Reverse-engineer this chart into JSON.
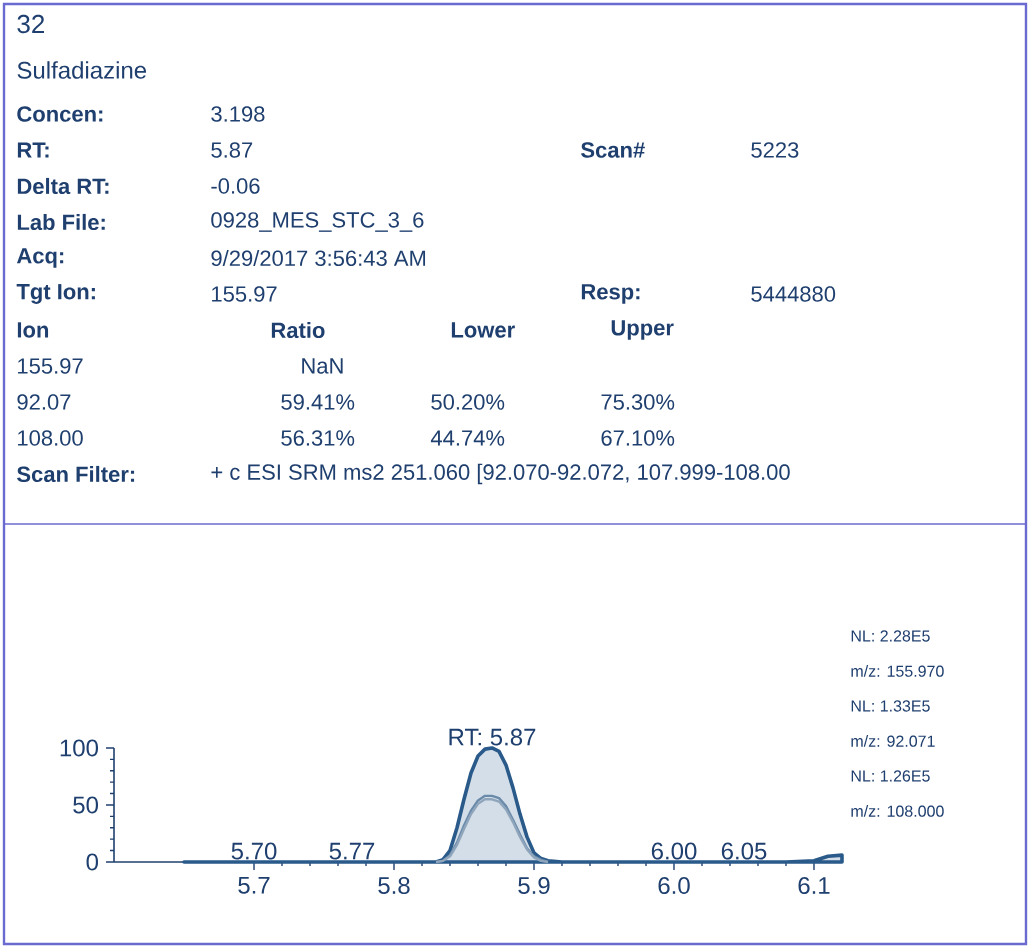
{
  "chart_data": {
    "type": "line",
    "title": "32",
    "subtitle": "Sulfadiazine",
    "annotations": [
      "Concen:",
      "3.198",
      "RT:",
      "5.87",
      "Scan#",
      "5223",
      "Delta RT:",
      "-0.06",
      "Lab File:",
      "0928_MES_STC_3_6",
      "Acq:",
      "9/29/2017 3:56:43 AM",
      "Tgt Ion:",
      "155.97",
      "Resp:",
      "5444880",
      "Ion",
      "Ratio",
      "Lower",
      "Upper",
      "155.97",
      "NaN",
      "92.07",
      "59.41%",
      "50.20%",
      "75.30%",
      "108.00",
      "56.31%",
      "44.74%",
      "67.10%",
      "Scan Filter:",
      "+ c ESI SRM ms2 251.060 [92.070-92.072, 107.999-108.00",
      "NL: 2.28E5",
      "m/z: 155.970",
      "NL: 1.33E5",
      "m/z: 92.071",
      "NL: 1.26E5",
      "m/z: 108.000",
      {
        "text": "RT: 5.87",
        "x": 5.87,
        "y": 100
      },
      {
        "text": "5.70",
        "x": 5.7,
        "y": 0
      },
      {
        "text": "5.77",
        "x": 5.77,
        "y": 0
      },
      {
        "text": "6.00",
        "x": 6.0,
        "y": 0
      },
      {
        "text": "6.05",
        "x": 6.05,
        "y": 0
      }
    ],
    "xlim": [
      5.6,
      6.12
    ],
    "ylim": [
      0,
      100
    ],
    "xticks": [
      5.7,
      5.8,
      5.9,
      {
        "value": 6.0,
        "label": "6.0"
      },
      6.1
    ],
    "yticks": [
      0,
      50,
      100
    ],
    "series": [
      {
        "type": "area",
        "color": "#2a5a8a",
        "x": [
          5.65,
          5.7,
          5.75,
          5.8,
          5.83,
          5.835,
          5.84,
          5.845,
          5.85,
          5.855,
          5.86,
          5.865,
          5.87,
          5.875,
          5.88,
          5.885,
          5.89,
          5.895,
          5.9,
          5.905,
          5.91,
          5.92,
          6.0,
          6.08,
          6.1,
          6.11,
          6.12
        ],
        "values": [
          0,
          0,
          0,
          0,
          0,
          2,
          10,
          30,
          55,
          78,
          93,
          99,
          100,
          97,
          85,
          65,
          42,
          22,
          8,
          3,
          1,
          0,
          0,
          0,
          1,
          5,
          6
        ]
      },
      {
        "color": "#6a8aaa",
        "x": [
          5.83,
          5.835,
          5.84,
          5.845,
          5.85,
          5.855,
          5.86,
          5.865,
          5.87,
          5.875,
          5.88,
          5.885,
          5.89,
          5.895,
          5.9,
          5.905,
          5.91
        ],
        "values": [
          0,
          1,
          6,
          17,
          32,
          45,
          54,
          58,
          58,
          56,
          49,
          37,
          24,
          12,
          5,
          2,
          0
        ]
      },
      {
        "color": "#8fa5bb",
        "x": [
          5.83,
          5.835,
          5.84,
          5.845,
          5.85,
          5.855,
          5.86,
          5.865,
          5.87,
          5.875,
          5.88,
          5.885,
          5.89,
          5.895,
          5.9,
          5.905,
          5.91
        ],
        "values": [
          0,
          1,
          5,
          15,
          29,
          42,
          51,
          55,
          55,
          53,
          46,
          35,
          22,
          11,
          4,
          1,
          0
        ]
      }
    ]
  }
}
